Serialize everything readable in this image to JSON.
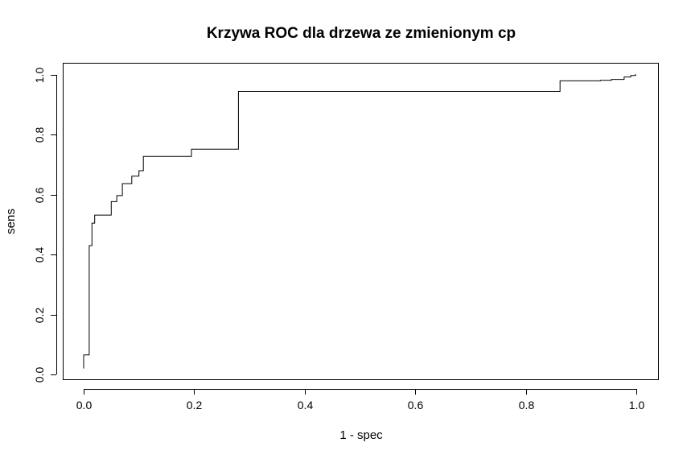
{
  "chart_data": {
    "type": "line",
    "title": "Krzywa ROC dla drzewa ze zmienionym cp",
    "xlabel": "1 - spec",
    "ylabel": "sens",
    "xlim": [
      0,
      1
    ],
    "ylim": [
      0,
      1
    ],
    "x_ticks": [
      "0.0",
      "0.2",
      "0.4",
      "0.6",
      "0.8",
      "1.0"
    ],
    "y_ticks": [
      "0.0",
      "0.2",
      "0.4",
      "0.6",
      "0.8",
      "1.0"
    ],
    "grid": false,
    "legend": "none",
    "step": true,
    "series": [
      {
        "x": [
          0.0,
          0.0,
          0.01,
          0.01,
          0.015,
          0.015,
          0.02,
          0.02,
          0.05,
          0.05,
          0.06,
          0.06,
          0.07,
          0.07,
          0.087,
          0.087,
          0.1,
          0.1,
          0.108,
          0.108,
          0.195,
          0.195,
          0.28,
          0.28,
          0.862,
          0.862,
          0.935,
          0.935,
          0.955,
          0.955,
          0.978,
          0.978,
          0.99,
          0.99,
          0.998,
          0.998,
          1.0
        ],
        "y": [
          0.02,
          0.065,
          0.065,
          0.43,
          0.43,
          0.505,
          0.505,
          0.532,
          0.532,
          0.577,
          0.577,
          0.597,
          0.597,
          0.637,
          0.637,
          0.662,
          0.662,
          0.68,
          0.68,
          0.728,
          0.728,
          0.752,
          0.752,
          0.945,
          0.945,
          0.98,
          0.98,
          0.982,
          0.982,
          0.985,
          0.985,
          0.993,
          0.993,
          0.998,
          0.998,
          1.0,
          1.0
        ]
      }
    ]
  }
}
